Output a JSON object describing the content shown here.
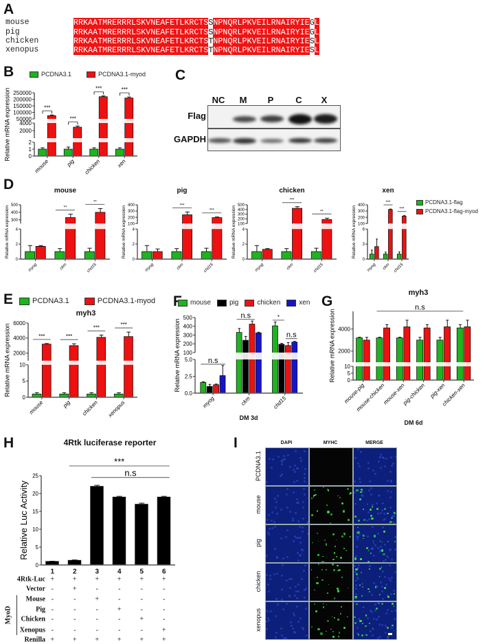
{
  "panels": {
    "a": "A",
    "b": "B",
    "c": "C",
    "d": "D",
    "e": "E",
    "f": "F",
    "g": "G",
    "h": "H",
    "i": "I"
  },
  "colors": {
    "green": "#1fb31f",
    "red": "#ee1111",
    "black": "#000000",
    "blue": "#1515c8",
    "alignment_red": "#f01414"
  },
  "panel_a": {
    "species": [
      "mouse",
      "pig",
      "chicken",
      "xenopus"
    ],
    "sequences": [
      {
        "a": "RRKAATMRERRRLSKVNEAFETLKRCTS",
        "v1": "S",
        "b": "NPNQRLPKVEILRNAIRYIE",
        "v2": "G",
        "c": "L"
      },
      {
        "a": "RRKAATMRERRRLSKVNEAFETLKRCTS",
        "v1": "S",
        "b": "NPNQRLPKVEILRNAIRYIE",
        "v2": "G",
        "c": "L"
      },
      {
        "a": "RRKAATMRERRRLSKVNEAFETLKRCTS",
        "v1": "T",
        "b": "NPNQRLPKVEILRNAIRYIE",
        "v2": "S",
        "c": "L"
      },
      {
        "a": "RRKAATMRERRRLSKVNEAFETLKRCTS",
        "v1": "T",
        "b": "NPNQRLPKVEILRNAIRYIE",
        "v2": "S",
        "c": "L"
      }
    ]
  },
  "panel_b": {
    "legend": [
      "PCDNA3.1",
      "PCDNA3.1-myod"
    ]
  },
  "panel_c": {
    "lanes": [
      "NC",
      "M",
      "P",
      "C",
      "X"
    ],
    "rows": [
      "Flag",
      "GAPDH"
    ]
  },
  "panel_d": {
    "legend": [
      "PCDNA3.1-flag",
      "PCDNA3.1-flag-myod"
    ]
  },
  "panel_e": {
    "legend": [
      "PCDNA3.1",
      "PCDNA3.1-myod"
    ]
  },
  "panel_f": {
    "legend": [
      "mouse",
      "pig",
      "chicken",
      "xen"
    ]
  },
  "panel_h": {
    "title": "4Rtk luciferase reporter",
    "group_label": "MyoD",
    "rows": [
      {
        "label": "4Rtk-Luc",
        "values": [
          "+",
          "+",
          "+",
          "+",
          "+",
          "+"
        ]
      },
      {
        "label": "Vector",
        "values": [
          "-",
          "+",
          "-",
          "-",
          "-",
          "-"
        ]
      },
      {
        "label": "Mouse",
        "values": [
          "-",
          "-",
          "+",
          "-",
          "-",
          "-"
        ]
      },
      {
        "label": "Pig",
        "values": [
          "-",
          "-",
          "-",
          "+",
          "-",
          "-"
        ]
      },
      {
        "label": "Chicken",
        "values": [
          "-",
          "-",
          "-",
          "-",
          "+",
          "-"
        ]
      },
      {
        "label": "Xenopus",
        "values": [
          "-",
          "-",
          "-",
          "-",
          "-",
          "+"
        ]
      },
      {
        "label": "Renilla",
        "values": [
          "+",
          "+",
          "+",
          "+",
          "+",
          "+"
        ]
      }
    ]
  },
  "panel_i": {
    "columns": [
      "DAPI",
      "MYHC",
      "MERGE"
    ],
    "rows": [
      "PCDNA3.1",
      "mouse",
      "pig",
      "chicken",
      "xenopus"
    ]
  },
  "chart_data": [
    {
      "id": "b",
      "type": "bar",
      "title": "",
      "ylabel": "Relative mRNA expression",
      "xlabel": "",
      "categories": [
        "mouse",
        "pig",
        "chicken",
        "xen"
      ],
      "y_segments": [
        [
          0,
          2
        ],
        [
          0,
          4000
        ],
        [
          50000,
          250000
        ]
      ],
      "yticks": [
        [
          0,
          1,
          2
        ],
        [
          2000,
          4000
        ],
        [
          50000,
          100000,
          150000,
          200000,
          250000
        ]
      ],
      "series": [
        {
          "name": "PCDNA3.1",
          "color": "#1fb31f",
          "values": [
            1,
            1,
            1,
            1
          ],
          "err": [
            0.2,
            0.3,
            0.2,
            0.2
          ]
        },
        {
          "name": "PCDNA3.1-myod",
          "color": "#ee1111",
          "values": [
            75000,
            2900,
            220000,
            210000
          ],
          "err": [
            5000,
            300,
            6000,
            8000
          ]
        }
      ],
      "annotations": [
        {
          "from": [
            0,
            0
          ],
          "to": [
            0,
            1
          ],
          "label": "***",
          "bracket": true
        },
        {
          "from": [
            1,
            0
          ],
          "to": [
            1,
            1
          ],
          "label": "***",
          "bracket": true
        },
        {
          "from": [
            2,
            0
          ],
          "to": [
            2,
            1
          ],
          "label": "***",
          "bracket": true
        },
        {
          "from": [
            3,
            0
          ],
          "to": [
            3,
            1
          ],
          "label": "***",
          "bracket": true
        }
      ]
    },
    {
      "id": "d1",
      "type": "bar",
      "title": "mouse",
      "ylabel": "Relative mRNA expression",
      "xlabel": "",
      "categories": [
        "myog",
        "ckm",
        "chd15"
      ],
      "y_segments": [
        [
          0,
          4
        ],
        [
          250,
          500
        ]
      ],
      "yticks": [
        [
          0,
          2,
          4
        ],
        [
          300,
          400,
          500
        ]
      ],
      "series": [
        {
          "name": "PCDNA3.1-flag",
          "color": "#1fb31f",
          "values": [
            1,
            1,
            1
          ],
          "err": [
            0.8,
            0.4,
            0.45
          ]
        },
        {
          "name": "PCDNA3.1-flag-myod",
          "color": "#ee1111",
          "values": [
            1.7,
            330,
            400
          ],
          "err": [
            0.1,
            45,
            50
          ]
        }
      ],
      "annotations": [
        {
          "from": [
            1,
            0
          ],
          "to": [
            1,
            1
          ],
          "label": "**"
        },
        {
          "from": [
            2,
            0
          ],
          "to": [
            2,
            1
          ],
          "label": "**"
        }
      ]
    },
    {
      "id": "d2",
      "type": "bar",
      "title": "pig",
      "ylabel": "Relative mRNA expression",
      "xlabel": "",
      "categories": [
        "myog",
        "ckm",
        "chd15"
      ],
      "y_segments": [
        [
          0,
          4
        ],
        [
          100,
          400
        ]
      ],
      "yticks": [
        [
          0,
          2,
          4
        ],
        [
          100,
          200,
          300,
          400
        ]
      ],
      "series": [
        {
          "name": "PCDNA3.1-flag",
          "color": "#1fb31f",
          "values": [
            1,
            1,
            1
          ],
          "err": [
            0.8,
            0.4,
            0.45
          ]
        },
        {
          "name": "PCDNA3.1-flag-myod",
          "color": "#ee1111",
          "values": [
            1,
            240,
            195
          ],
          "err": [
            0.35,
            45,
            10
          ]
        }
      ],
      "annotations": [
        {
          "from": [
            1,
            0
          ],
          "to": [
            1,
            1
          ],
          "label": "***"
        },
        {
          "from": [
            2,
            0
          ],
          "to": [
            2,
            1
          ],
          "label": "***"
        }
      ]
    },
    {
      "id": "d3",
      "type": "bar",
      "title": "chicken",
      "ylabel": "Relative mRNA expression",
      "xlabel": "",
      "categories": [
        "myog",
        "ckm",
        "chd15"
      ],
      "y_segments": [
        [
          0,
          4
        ],
        [
          100,
          500
        ]
      ],
      "yticks": [
        [
          0,
          2,
          4
        ],
        [
          100,
          200,
          300,
          400,
          500
        ]
      ],
      "series": [
        {
          "name": "PCDNA3.1-flag",
          "color": "#1fb31f",
          "values": [
            1,
            1,
            1
          ],
          "err": [
            0.8,
            0.4,
            0.45
          ]
        },
        {
          "name": "PCDNA3.1-flag-myod",
          "color": "#ee1111",
          "values": [
            1.3,
            425,
            185
          ],
          "err": [
            0.1,
            35,
            30
          ]
        }
      ],
      "annotations": [
        {
          "from": [
            1,
            0
          ],
          "to": [
            1,
            1
          ],
          "label": "***"
        },
        {
          "from": [
            2,
            0
          ],
          "to": [
            2,
            1
          ],
          "label": "**"
        }
      ]
    },
    {
      "id": "d4",
      "type": "bar",
      "title": "xen",
      "ylabel": "Relative mRNA expression",
      "xlabel": "",
      "categories": [
        "myog",
        "ckm",
        "chd15"
      ],
      "y_segments": [
        [
          0,
          6
        ],
        [
          100,
          400
        ]
      ],
      "yticks": [
        [
          0,
          3,
          6
        ],
        [
          100,
          200,
          300,
          400
        ]
      ],
      "series": [
        {
          "name": "PCDNA3.1-flag",
          "color": "#1fb31f",
          "values": [
            1,
            1,
            1
          ],
          "err": [
            0.8,
            0.4,
            0.45
          ]
        },
        {
          "name": "PCDNA3.1-flag-myod",
          "color": "#ee1111",
          "values": [
            2.5,
            325,
            220
          ],
          "err": [
            1.5,
            8,
            8
          ]
        }
      ],
      "annotations": [
        {
          "from": [
            1,
            0
          ],
          "to": [
            1,
            1
          ],
          "label": "***"
        },
        {
          "from": [
            2,
            0
          ],
          "to": [
            2,
            1
          ],
          "label": "***"
        }
      ]
    },
    {
      "id": "e",
      "type": "bar",
      "title": "myh3",
      "ylabel": "Relative mRNA expression",
      "xlabel": "",
      "categories": [
        "mouse",
        "pig",
        "chicken",
        "xenopus"
      ],
      "y_segments": [
        [
          0,
          10
        ],
        [
          1000,
          6000
        ]
      ],
      "yticks": [
        [
          0,
          5,
          10
        ],
        [
          2000,
          4000,
          6000
        ]
      ],
      "series": [
        {
          "name": "PCDNA3.1",
          "color": "#1fb31f",
          "values": [
            1,
            1,
            1,
            1
          ],
          "err": [
            0.4,
            0.4,
            0.4,
            0.4
          ]
        },
        {
          "name": "PCDNA3.1-myod",
          "color": "#ee1111",
          "values": [
            3200,
            3000,
            4100,
            4200
          ],
          "err": [
            80,
            250,
            300,
            600
          ]
        }
      ],
      "annotations": [
        {
          "from": [
            0,
            0
          ],
          "to": [
            0,
            1
          ],
          "label": "***"
        },
        {
          "from": [
            1,
            0
          ],
          "to": [
            1,
            1
          ],
          "label": "***"
        },
        {
          "from": [
            2,
            0
          ],
          "to": [
            2,
            1
          ],
          "label": "***"
        },
        {
          "from": [
            3,
            0
          ],
          "to": [
            3,
            1
          ],
          "label": "***"
        }
      ]
    },
    {
      "id": "f",
      "type": "bar",
      "title": "",
      "ylabel": "Relative mRNA expression",
      "xlabel": "DM 3d",
      "categories": [
        "myog",
        "ckm",
        "chd15"
      ],
      "y_segments": [
        [
          0,
          5
        ],
        [
          100,
          500
        ]
      ],
      "yticks": [
        [
          "0.0",
          "2.5",
          "5.0"
        ],
        [
          100,
          200,
          300,
          400,
          500
        ]
      ],
      "series": [
        {
          "name": "mouse",
          "color": "#1fb31f",
          "values": [
            1.6,
            330,
            405
          ],
          "err": [
            0.1,
            45,
            45
          ]
        },
        {
          "name": "pig",
          "color": "#000000",
          "values": [
            1.0,
            240,
            195
          ],
          "err": [
            0.3,
            45,
            10
          ]
        },
        {
          "name": "chicken",
          "color": "#ee1111",
          "values": [
            1.25,
            425,
            180
          ],
          "err": [
            0.1,
            35,
            35
          ]
        },
        {
          "name": "xen",
          "color": "#1515c8",
          "values": [
            2.6,
            325,
            220
          ],
          "err": [
            1.5,
            8,
            8
          ]
        }
      ],
      "annotations": [
        {
          "from": [
            0,
            0
          ],
          "to": [
            0,
            3
          ],
          "y": 4.3,
          "label": "n.s"
        },
        {
          "from": [
            1,
            0
          ],
          "to": [
            1,
            2
          ],
          "y": 480,
          "label": "n.s"
        },
        {
          "from": [
            2,
            0
          ],
          "to": [
            2,
            1
          ],
          "y": 470,
          "label": "*"
        },
        {
          "from": [
            2,
            2
          ],
          "to": [
            2,
            3
          ],
          "y": 260,
          "label": "n.s"
        }
      ]
    },
    {
      "id": "g",
      "type": "bar",
      "title": "myh3",
      "ylabel": "Relative mRNA expression",
      "xlabel": "DM 6d",
      "categories": [
        "mouse-pig",
        "mouse-chicken",
        "mouse-xen",
        "pig-chicken",
        "pig-xen",
        "chicken-xen"
      ],
      "y_segments": [
        [
          0,
          10
        ],
        [
          1000,
          5600
        ]
      ],
      "yticks": [
        [
          0,
          5,
          10
        ],
        [
          2000,
          4000
        ]
      ],
      "series": [
        {
          "color": "#1fb31f",
          "values": [
            3200,
            3200,
            3200,
            3000,
            3000,
            4100
          ],
          "err": [
            60,
            60,
            60,
            250,
            250,
            300
          ]
        },
        {
          "color": "#ee1111",
          "values": [
            3000,
            4100,
            4200,
            4100,
            4200,
            4200
          ],
          "err": [
            250,
            300,
            600,
            300,
            600,
            600
          ]
        }
      ],
      "annotations": [
        {
          "from": [
            1,
            0
          ],
          "to": [
            5,
            0
          ],
          "y": 5620,
          "label": "n.s"
        }
      ]
    },
    {
      "id": "h",
      "type": "bar",
      "title": "4Rtk luciferase reporter",
      "ylabel": "Relative Luc Activity",
      "xlabel": "",
      "categories": [
        "1",
        "2",
        "3",
        "4",
        "5",
        "6"
      ],
      "y_segments": [
        [
          0,
          25
        ]
      ],
      "yticks": [
        [
          0,
          5,
          10,
          15,
          20,
          25
        ]
      ],
      "series": [
        {
          "color": "#000000",
          "values": [
            1,
            1.3,
            22,
            19,
            17,
            19
          ],
          "err": [
            0.05,
            0.1,
            0.3,
            0.2,
            0.3,
            0.2
          ]
        }
      ],
      "annotations": [
        {
          "from": [
            1,
            0
          ],
          "to": [
            5,
            0
          ],
          "y": 27.7,
          "label": "***"
        },
        {
          "from": [
            2,
            0
          ],
          "to": [
            5,
            0
          ],
          "y": 24.5,
          "label": "n.s"
        }
      ]
    }
  ]
}
